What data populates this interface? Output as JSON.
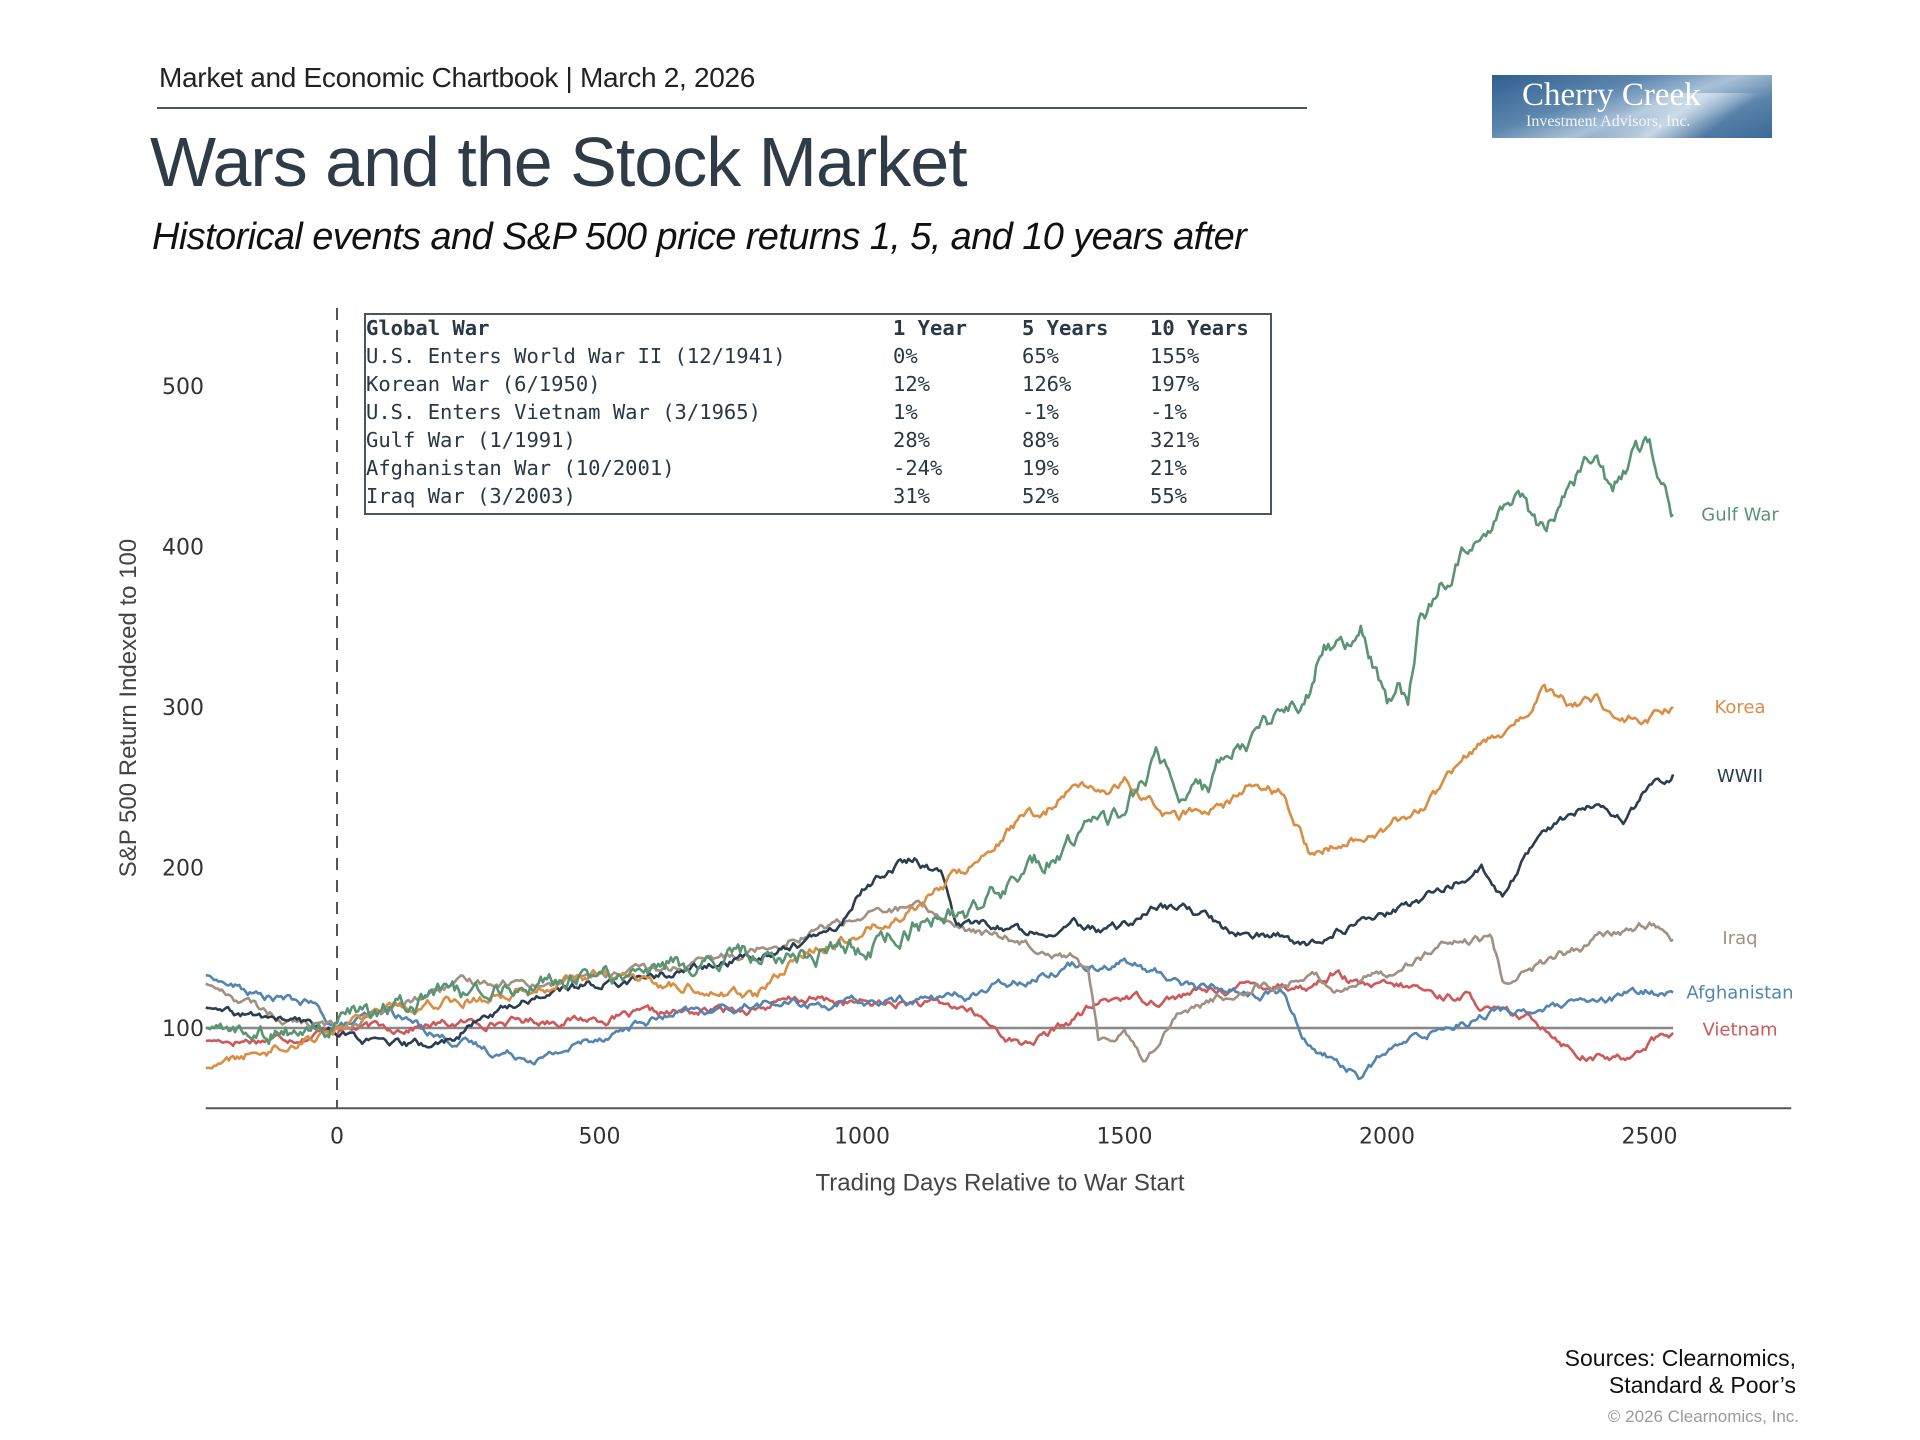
{
  "header": {
    "kicker": "Market and Economic Chartbook | March 2, 2026",
    "title": "Wars and the Stock Market",
    "subtitle": "Historical events and S&P 500 price returns 1, 5, and 10 years after"
  },
  "logo": {
    "name": "Cherry Creek",
    "subtitle": "Investment Advisors, Inc."
  },
  "table": {
    "headers": [
      "Global War",
      "1 Year",
      "5 Years",
      "10 Years"
    ],
    "rows": [
      [
        "U.S. Enters World War II (12/1941)",
        "0%",
        "65%",
        "155%"
      ],
      [
        "Korean War (6/1950)",
        "12%",
        "126%",
        "197%"
      ],
      [
        "U.S. Enters Vietnam War (3/1965)",
        "1%",
        "-1%",
        "-1%"
      ],
      [
        "Gulf War (1/1991)",
        "28%",
        "88%",
        "321%"
      ],
      [
        "Afghanistan War (10/2001)",
        "-24%",
        "19%",
        "21%"
      ],
      [
        "Iraq War (3/2003)",
        "31%",
        "52%",
        "55%"
      ]
    ]
  },
  "footer": {
    "sources_line1": "Sources: Clearnomics,",
    "sources_line2": "Standard & Poor’s",
    "copyright": "© 2026 Clearnomics, Inc."
  },
  "chart_data": {
    "type": "line",
    "title": "Wars and the Stock Market",
    "xlabel": "Trading Days Relative to War Start",
    "ylabel": "S&P 500 Return Indexed to 100",
    "xlim": [
      -250,
      2770
    ],
    "ylim": [
      50,
      550
    ],
    "x_ticks": [
      0,
      500,
      1000,
      1500,
      2000,
      2500
    ],
    "y_ticks": [
      100,
      200,
      300,
      400,
      500
    ],
    "reference_lines": {
      "horizontal_y": 100,
      "vertical_x_dashed": 0
    },
    "grid": false,
    "legend": "direct labels at right end of lines",
    "series": [
      {
        "name": "Gulf War",
        "color": "#5b9474",
        "points": [
          [
            -250,
            100
          ],
          [
            -150,
            98
          ],
          [
            -50,
            97
          ],
          [
            0,
            100
          ],
          [
            100,
            112
          ],
          [
            300,
            125
          ],
          [
            500,
            132
          ],
          [
            700,
            140
          ],
          [
            800,
            145
          ],
          [
            1000,
            150
          ],
          [
            1100,
            165
          ],
          [
            1200,
            170
          ],
          [
            1300,
            195
          ],
          [
            1400,
            215
          ],
          [
            1500,
            235
          ],
          [
            1560,
            265
          ],
          [
            1600,
            245
          ],
          [
            1660,
            245
          ],
          [
            1700,
            275
          ],
          [
            1800,
            290
          ],
          [
            1850,
            310
          ],
          [
            1880,
            345
          ],
          [
            1920,
            340
          ],
          [
            1950,
            350
          ],
          [
            1980,
            325
          ],
          [
            2000,
            300
          ],
          [
            2020,
            310
          ],
          [
            2040,
            300
          ],
          [
            2060,
            350
          ],
          [
            2100,
            375
          ],
          [
            2150,
            400
          ],
          [
            2200,
            415
          ],
          [
            2250,
            430
          ],
          [
            2300,
            405
          ],
          [
            2330,
            430
          ],
          [
            2360,
            445
          ],
          [
            2400,
            460
          ],
          [
            2430,
            430
          ],
          [
            2470,
            455
          ],
          [
            2500,
            460
          ],
          [
            2530,
            440
          ],
          [
            2545,
            420
          ]
        ]
      },
      {
        "name": "Korea",
        "color": "#d88f45",
        "points": [
          [
            -250,
            75
          ],
          [
            -150,
            85
          ],
          [
            0,
            100
          ],
          [
            100,
            115
          ],
          [
            200,
            118
          ],
          [
            300,
            120
          ],
          [
            400,
            128
          ],
          [
            500,
            133
          ],
          [
            600,
            128
          ],
          [
            700,
            125
          ],
          [
            800,
            120
          ],
          [
            900,
            150
          ],
          [
            1000,
            160
          ],
          [
            1100,
            175
          ],
          [
            1150,
            188
          ],
          [
            1200,
            200
          ],
          [
            1300,
            230
          ],
          [
            1350,
            235
          ],
          [
            1400,
            250
          ],
          [
            1450,
            245
          ],
          [
            1500,
            255
          ],
          [
            1560,
            238
          ],
          [
            1600,
            230
          ],
          [
            1700,
            240
          ],
          [
            1750,
            255
          ],
          [
            1800,
            245
          ],
          [
            1850,
            210
          ],
          [
            1900,
            215
          ],
          [
            2000,
            225
          ],
          [
            2100,
            245
          ],
          [
            2150,
            265
          ],
          [
            2200,
            280
          ],
          [
            2250,
            290
          ],
          [
            2300,
            310
          ],
          [
            2350,
            300
          ],
          [
            2400,
            305
          ],
          [
            2440,
            290
          ],
          [
            2500,
            295
          ],
          [
            2545,
            300
          ]
        ]
      },
      {
        "name": "WWII",
        "color": "#2b3e50",
        "points": [
          [
            -250,
            113
          ],
          [
            -200,
            108
          ],
          [
            -100,
            105
          ],
          [
            0,
            98
          ],
          [
            100,
            88
          ],
          [
            200,
            90
          ],
          [
            300,
            110
          ],
          [
            400,
            122
          ],
          [
            500,
            128
          ],
          [
            600,
            132
          ],
          [
            700,
            138
          ],
          [
            800,
            145
          ],
          [
            850,
            150
          ],
          [
            900,
            155
          ],
          [
            950,
            160
          ],
          [
            1000,
            185
          ],
          [
            1050,
            200
          ],
          [
            1100,
            205
          ],
          [
            1150,
            195
          ],
          [
            1180,
            165
          ],
          [
            1250,
            165
          ],
          [
            1300,
            160
          ],
          [
            1400,
            165
          ],
          [
            1450,
            160
          ],
          [
            1500,
            163
          ],
          [
            1550,
            175
          ],
          [
            1600,
            175
          ],
          [
            1650,
            170
          ],
          [
            1700,
            160
          ],
          [
            1800,
            157
          ],
          [
            1850,
            150
          ],
          [
            1900,
            160
          ],
          [
            2000,
            170
          ],
          [
            2100,
            185
          ],
          [
            2180,
            200
          ],
          [
            2220,
            180
          ],
          [
            2280,
            215
          ],
          [
            2330,
            230
          ],
          [
            2400,
            240
          ],
          [
            2450,
            228
          ],
          [
            2500,
            250
          ],
          [
            2545,
            258
          ]
        ]
      },
      {
        "name": "Iraq",
        "color": "#a09182",
        "points": [
          [
            -250,
            128
          ],
          [
            -200,
            120
          ],
          [
            -100,
            105
          ],
          [
            0,
            100
          ],
          [
            100,
            110
          ],
          [
            200,
            125
          ],
          [
            300,
            130
          ],
          [
            400,
            128
          ],
          [
            500,
            133
          ],
          [
            600,
            135
          ],
          [
            700,
            140
          ],
          [
            800,
            150
          ],
          [
            900,
            160
          ],
          [
            1000,
            170
          ],
          [
            1100,
            175
          ],
          [
            1150,
            170
          ],
          [
            1200,
            160
          ],
          [
            1300,
            155
          ],
          [
            1350,
            150
          ],
          [
            1400,
            145
          ],
          [
            1430,
            135
          ],
          [
            1450,
            90
          ],
          [
            1500,
            100
          ],
          [
            1540,
            80
          ],
          [
            1600,
            110
          ],
          [
            1700,
            120
          ],
          [
            1750,
            128
          ],
          [
            1800,
            125
          ],
          [
            1850,
            135
          ],
          [
            1900,
            125
          ],
          [
            2000,
            135
          ],
          [
            2100,
            150
          ],
          [
            2200,
            155
          ],
          [
            2220,
            130
          ],
          [
            2300,
            140
          ],
          [
            2400,
            155
          ],
          [
            2500,
            165
          ],
          [
            2545,
            155
          ]
        ]
      },
      {
        "name": "Afghanistan",
        "color": "#5485b0",
        "points": [
          [
            -250,
            133
          ],
          [
            -150,
            120
          ],
          [
            -50,
            115
          ],
          [
            0,
            100
          ],
          [
            100,
            110
          ],
          [
            200,
            95
          ],
          [
            300,
            85
          ],
          [
            400,
            82
          ],
          [
            500,
            95
          ],
          [
            600,
            105
          ],
          [
            700,
            110
          ],
          [
            800,
            115
          ],
          [
            900,
            115
          ],
          [
            1000,
            115
          ],
          [
            1100,
            118
          ],
          [
            1200,
            120
          ],
          [
            1300,
            130
          ],
          [
            1400,
            140
          ],
          [
            1450,
            140
          ],
          [
            1500,
            142
          ],
          [
            1550,
            135
          ],
          [
            1600,
            130
          ],
          [
            1650,
            125
          ],
          [
            1700,
            125
          ],
          [
            1750,
            120
          ],
          [
            1800,
            122
          ],
          [
            1850,
            90
          ],
          [
            1900,
            80
          ],
          [
            1950,
            70
          ],
          [
            2000,
            85
          ],
          [
            2100,
            100
          ],
          [
            2200,
            110
          ],
          [
            2300,
            112
          ],
          [
            2400,
            115
          ],
          [
            2500,
            123
          ],
          [
            2545,
            122
          ]
        ]
      },
      {
        "name": "Vietnam",
        "color": "#cc5a5a",
        "points": [
          [
            -250,
            92
          ],
          [
            -150,
            93
          ],
          [
            -50,
            96
          ],
          [
            0,
            100
          ],
          [
            100,
            100
          ],
          [
            200,
            102
          ],
          [
            300,
            104
          ],
          [
            400,
            105
          ],
          [
            500,
            106
          ],
          [
            600,
            108
          ],
          [
            700,
            110
          ],
          [
            800,
            113
          ],
          [
            900,
            118
          ],
          [
            1000,
            115
          ],
          [
            1100,
            115
          ],
          [
            1200,
            112
          ],
          [
            1250,
            100
          ],
          [
            1300,
            90
          ],
          [
            1350,
            95
          ],
          [
            1400,
            105
          ],
          [
            1450,
            115
          ],
          [
            1500,
            120
          ],
          [
            1550,
            118
          ],
          [
            1600,
            120
          ],
          [
            1700,
            125
          ],
          [
            1800,
            128
          ],
          [
            1850,
            125
          ],
          [
            1900,
            135
          ],
          [
            1950,
            125
          ],
          [
            2050,
            125
          ],
          [
            2100,
            120
          ],
          [
            2150,
            120
          ],
          [
            2200,
            110
          ],
          [
            2300,
            102
          ],
          [
            2360,
            85
          ],
          [
            2400,
            82
          ],
          [
            2450,
            80
          ],
          [
            2500,
            93
          ],
          [
            2545,
            97
          ]
        ]
      }
    ]
  }
}
